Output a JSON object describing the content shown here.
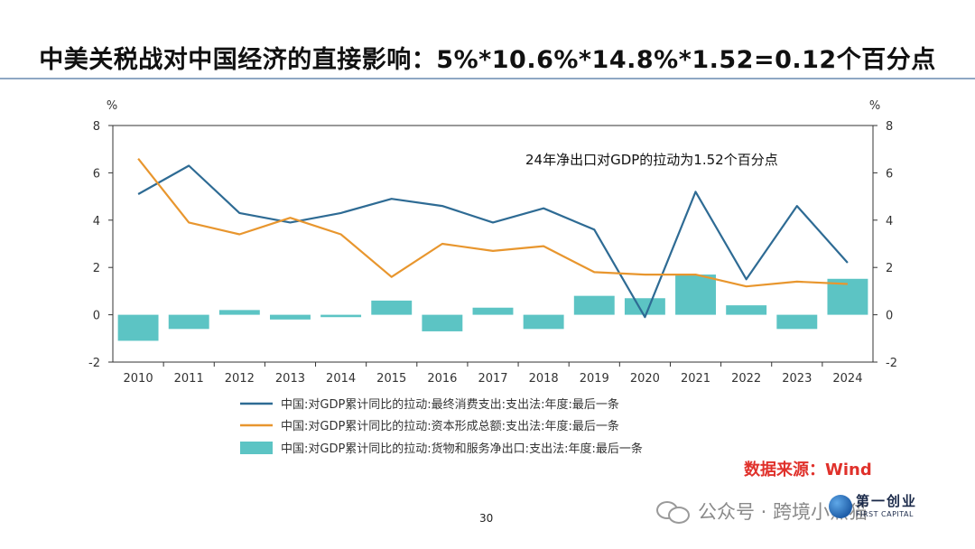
{
  "slide": {
    "title": "中美关税战对中国经济的直接影响：5%*10.6%*14.8%*1.52=0.12个百分点",
    "source_note": "数据来源：Wind",
    "page_number": "30",
    "watermark": "公众号 · 跨境小熊猫",
    "brand_cn": "第一创业",
    "brand_en": "FIRST CAPITAL"
  },
  "colors": {
    "consumption": "#2e6b94",
    "capital": "#e8962e",
    "net_exports": "#5cc4c4",
    "axis": "#333333",
    "title_rule": "#8fa7c4",
    "source": "#e0312b"
  },
  "chart_data": {
    "type": "bar+line",
    "annotation": "24年净出口对GDP的拉动为1.52个百分点",
    "ylabel_left": "%",
    "ylabel_right": "%",
    "ylim": [
      -2,
      8
    ],
    "yticks": [
      -2,
      0,
      2,
      4,
      6,
      8
    ],
    "categories": [
      "2010",
      "2011",
      "2012",
      "2013",
      "2014",
      "2015",
      "2016",
      "2017",
      "2018",
      "2019",
      "2020",
      "2021",
      "2022",
      "2023",
      "2024"
    ],
    "grid": false,
    "legend_position": "bottom",
    "series": [
      {
        "name": "中国:对GDP累计同比的拉动:最终消费支出:支出法:年度:最后一条",
        "kind": "line",
        "color_key": "consumption",
        "values": [
          5.1,
          6.3,
          4.3,
          3.9,
          4.3,
          4.9,
          4.6,
          3.9,
          4.5,
          3.6,
          -0.1,
          5.2,
          1.5,
          4.6,
          2.2
        ]
      },
      {
        "name": "中国:对GDP累计同比的拉动:资本形成总额:支出法:年度:最后一条",
        "kind": "line",
        "color_key": "capital",
        "values": [
          6.6,
          3.9,
          3.4,
          4.1,
          3.4,
          1.6,
          3.0,
          2.7,
          2.9,
          1.8,
          1.7,
          1.7,
          1.2,
          1.4,
          1.3
        ]
      },
      {
        "name": "中国:对GDP累计同比的拉动:货物和服务净出口:支出法:年度:最后一条",
        "kind": "bar",
        "color_key": "net_exports",
        "values": [
          -1.1,
          -0.6,
          0.2,
          -0.2,
          -0.1,
          0.6,
          -0.7,
          0.3,
          -0.6,
          0.8,
          0.7,
          1.7,
          0.4,
          -0.6,
          1.52
        ]
      }
    ]
  }
}
